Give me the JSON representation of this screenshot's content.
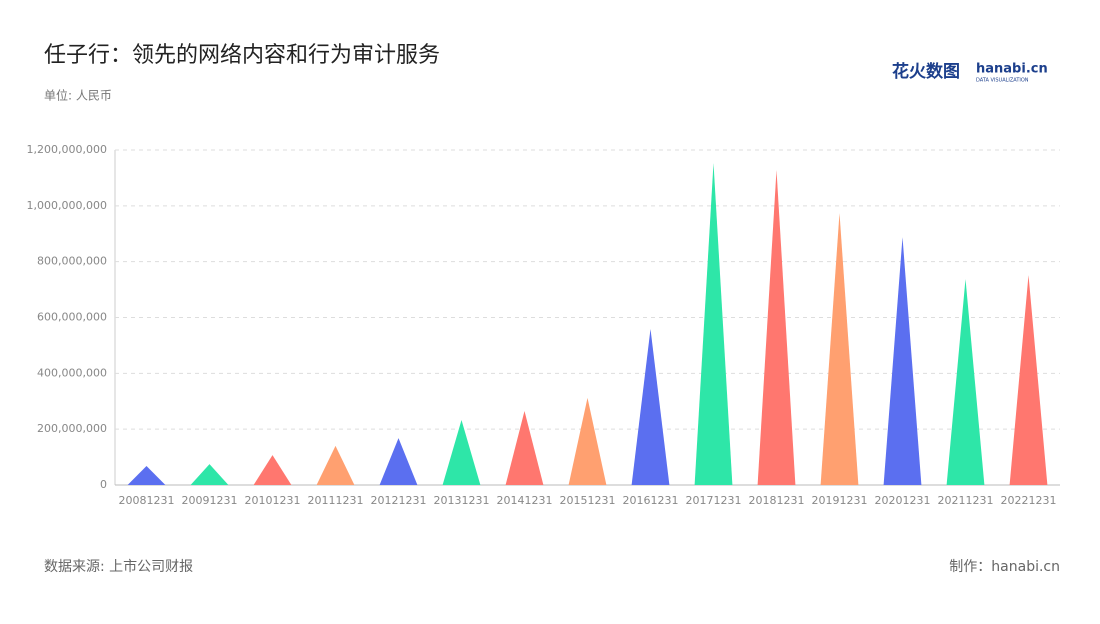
{
  "chart_data": {
    "type": "bar",
    "title": "任子行：领先的网络内容和行为审计服务",
    "subtitle": "单位: 人民币",
    "source": "数据来源: 上市公司财报",
    "credit": "制作：hanabi.cn",
    "logo": {
      "cn": "花火数图",
      "en": "hanabi.cn",
      "tagline": "DATA VISUALIZATION"
    },
    "categories": [
      "20081231",
      "20091231",
      "20101231",
      "20111231",
      "20121231",
      "20131231",
      "20141231",
      "20151231",
      "20161231",
      "20171231",
      "20181231",
      "20191231",
      "20201231",
      "20211231",
      "20221231"
    ],
    "values": [
      68000000,
      75000000,
      107000000,
      140000000,
      168000000,
      233000000,
      265000000,
      312000000,
      559000000,
      1153000000,
      1128000000,
      974000000,
      888000000,
      738000000,
      752000000
    ],
    "colors": [
      "#5b6ff0",
      "#2ee6a8",
      "#ff776f",
      "#ffa070",
      "#5b6ff0",
      "#2ee6a8",
      "#ff776f",
      "#ffa070",
      "#5b6ff0",
      "#2ee6a8",
      "#ff776f",
      "#ffa070",
      "#5b6ff0",
      "#2ee6a8",
      "#ff776f"
    ],
    "ylim": [
      0,
      1200000000
    ],
    "yticks": [
      0,
      {
        "value": 200000000,
        "label": "200,000,000"
      },
      {
        "value": 400000000,
        "label": "400,000,000"
      },
      {
        "value": 600000000,
        "label": "600,000,000"
      },
      {
        "value": 800000000,
        "label": "800,000,000"
      },
      {
        "value": 1000000000,
        "label": "1,000,000,000"
      },
      {
        "value": 1200000000,
        "label": "1,200,000,000"
      }
    ],
    "grid": true
  }
}
